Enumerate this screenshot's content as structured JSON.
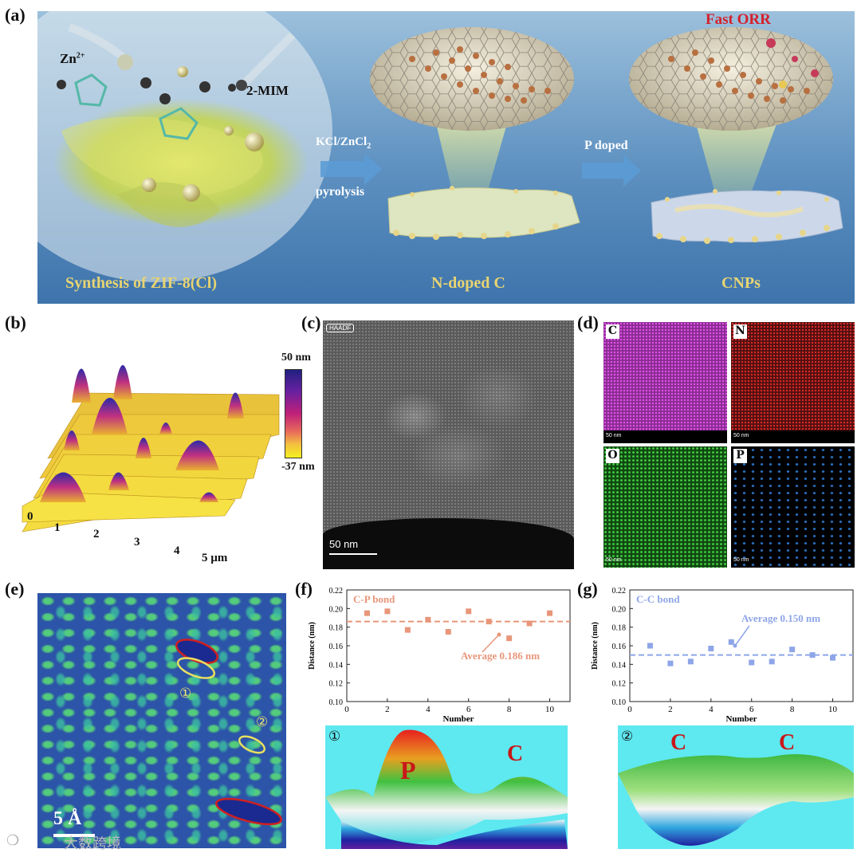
{
  "panels": {
    "a": "(a)",
    "b": "(b)",
    "c": "(c)",
    "d": "(d)",
    "e": "(e)",
    "f": "(f)",
    "g": "(g)"
  },
  "panel_a": {
    "zn": "Zn",
    "zn_sup": "2+",
    "mim": "2-MIM",
    "step1_top": "KCl/ZnCl",
    "step1_sub": "2",
    "step1_bottom": "pyrolysis",
    "step2": "P doped",
    "fast_orr": "Fast ORR",
    "caption1": "Synthesis of ZIF-8(Cl)",
    "caption2": "N-doped C",
    "caption3": "CNPs"
  },
  "panel_b": {
    "scale_max": "50 nm",
    "scale_min": "-37 nm",
    "ticks": [
      "0",
      "1",
      "2",
      "3",
      "4",
      "5 µm"
    ]
  },
  "panel_c": {
    "tag": "HAADF",
    "scalebar": "50 nm"
  },
  "panel_d": {
    "maps": [
      {
        "el": "C",
        "scale": "50 nm",
        "color": "#c040c8"
      },
      {
        "el": "N",
        "scale": "50 nm",
        "color": "#c82020"
      },
      {
        "el": "O",
        "scale": "50 nm",
        "color": "#3cc83c"
      },
      {
        "el": "P",
        "scale": "50 nm",
        "color": "#2e7ad0"
      }
    ]
  },
  "panel_e": {
    "mark1": "①",
    "mark2": "②",
    "scale": "5 Å"
  },
  "watermark": "大数跨境",
  "chart_data": [
    {
      "type": "scatter",
      "legend": "C-P bond",
      "annotation": "Average 0.186 nm",
      "average": 0.186,
      "xlabel": "Number",
      "ylabel": "Distance (nm)",
      "xlim": [
        0,
        11
      ],
      "ylim": [
        0.1,
        0.22
      ],
      "xticks": [
        "0",
        "2",
        "4",
        "6",
        "8",
        "10"
      ],
      "yticks": [
        "0.10",
        "0.12",
        "0.14",
        "0.16",
        "0.18",
        "0.20",
        "0.22"
      ],
      "x": [
        1,
        2,
        3,
        4,
        5,
        6,
        7,
        8,
        9,
        10
      ],
      "y": [
        0.195,
        0.197,
        0.177,
        0.188,
        0.175,
        0.197,
        0.186,
        0.168,
        0.184,
        0.195
      ],
      "color": "#e8967a",
      "surface": {
        "mark": "①",
        "labels": [
          "P",
          "C"
        ]
      }
    },
    {
      "type": "scatter",
      "legend": "C-C bond",
      "annotation": "Average 0.150 nm",
      "average": 0.15,
      "xlabel": "Number",
      "ylabel": "Distance (nm)",
      "xlim": [
        0,
        11
      ],
      "ylim": [
        0.1,
        0.22
      ],
      "xticks": [
        "0",
        "2",
        "4",
        "6",
        "8",
        "10"
      ],
      "yticks": [
        "0.10",
        "0.12",
        "0.14",
        "0.16",
        "0.18",
        "0.20",
        "0.22"
      ],
      "x": [
        1,
        2,
        3,
        4,
        5,
        6,
        7,
        8,
        9,
        10
      ],
      "y": [
        0.16,
        0.141,
        0.143,
        0.157,
        0.164,
        0.142,
        0.143,
        0.156,
        0.15,
        0.147
      ],
      "color": "#8ea6e8",
      "surface": {
        "mark": "②",
        "labels": [
          "C",
          "C"
        ]
      }
    }
  ]
}
